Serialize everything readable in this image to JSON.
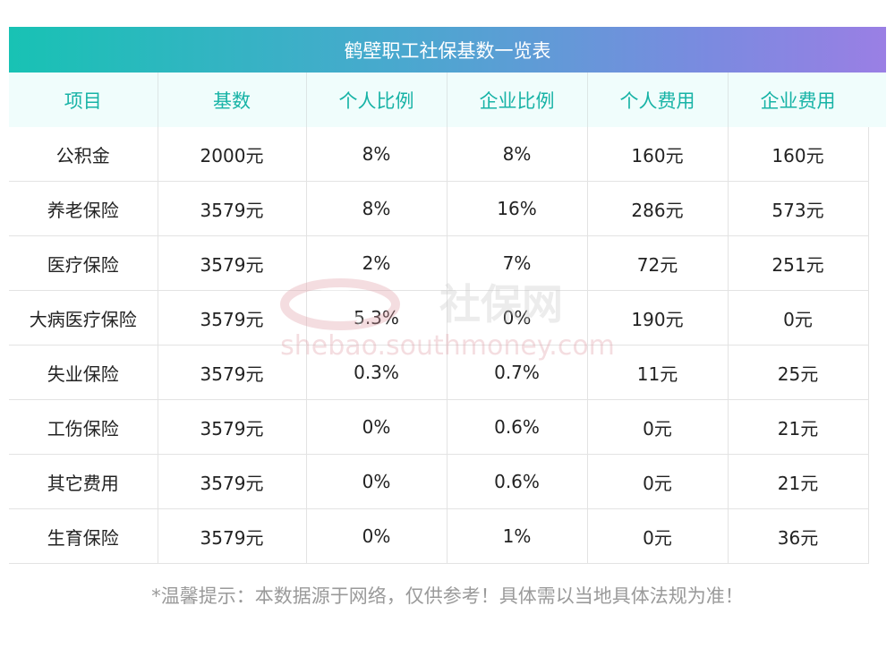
{
  "title": "鹤壁职工社保基数一览表",
  "headers": [
    "项目",
    "基数",
    "个人比例",
    "企业比例",
    "个人费用",
    "企业费用"
  ],
  "rows": [
    [
      "公积金",
      "2000元",
      "8%",
      "8%",
      "160元",
      "160元"
    ],
    [
      "养老保险",
      "3579元",
      "8%",
      "16%",
      "286元",
      "573元"
    ],
    [
      "医疗保险",
      "3579元",
      "2%",
      "7%",
      "72元",
      "251元"
    ],
    [
      "大病医疗保险",
      "3579元",
      "5.3%",
      "0%",
      "190元",
      "0元"
    ],
    [
      "失业保险",
      "3579元",
      "0.3%",
      "0.7%",
      "11元",
      "25元"
    ],
    [
      "工伤保险",
      "3579元",
      "0%",
      "0.6%",
      "0元",
      "21元"
    ],
    [
      "其它费用",
      "3579元",
      "0%",
      "0.6%",
      "0元",
      "21元"
    ],
    [
      "生育保险",
      "3579元",
      "0%",
      "1%",
      "0元",
      "36元"
    ]
  ],
  "note": "*温馨提示：本数据源于网络，仅供参考！具体需以当地具体法规为准！",
  "watermark": {
    "logo_text": "社保网",
    "url_text": "shebao.southmoney.com"
  }
}
